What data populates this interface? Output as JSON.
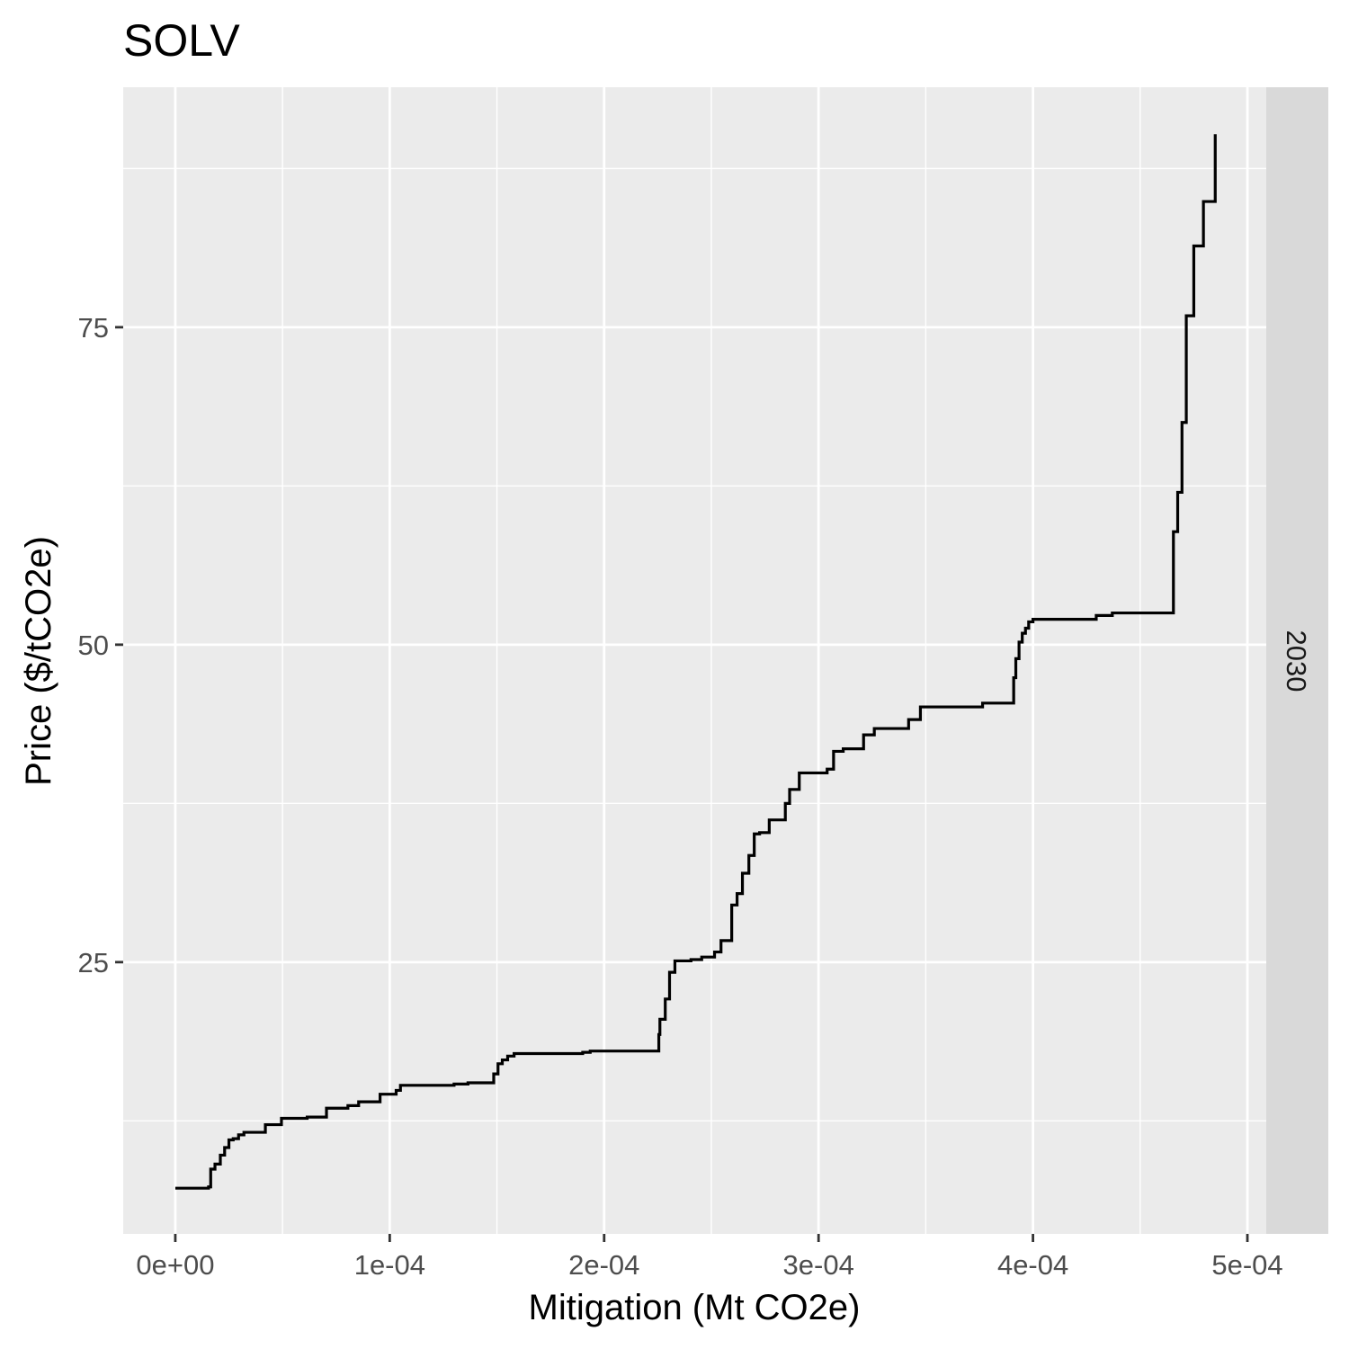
{
  "chart_data": {
    "type": "line",
    "line_style": "step",
    "title": "SOLV",
    "xlabel": "Mitigation (Mt CO2e)",
    "ylabel": "Price ($/tCO2e)",
    "facet_label": "2030",
    "xlim": [
      -2.43e-05,
      0.0005088
    ],
    "ylim": [
      3.6,
      93.9
    ],
    "x_ticks": [
      0,
      0.0001,
      0.0002,
      0.0003,
      0.0004,
      0.0005
    ],
    "x_tick_labels": [
      "0e+00",
      "1e-04",
      "2e-04",
      "3e-04",
      "4e-04",
      "5e-04"
    ],
    "y_ticks": [
      25,
      50,
      75
    ],
    "y_tick_labels": [
      "25",
      "50",
      "75"
    ],
    "grid": true,
    "colors": {
      "panel": "#ebebeb",
      "grid": "#ffffff",
      "strip": "#d9d9d9",
      "line": "#000000"
    },
    "series": [
      {
        "x": [
          0,
          1.55e-05,
          1.65e-05,
          1.85e-05,
          2.1e-05,
          2.3e-05,
          2.5e-05,
          2.7e-05,
          2.95e-05,
          3.2e-05,
          4.2e-05,
          4.95e-05,
          6.15e-05,
          7.05e-05,
          8.05e-05,
          8.55e-05,
          9.55e-05,
          0.000103,
          0.000105,
          0.00013,
          0.0001365,
          0.0001485,
          0.0001505,
          0.0001525,
          0.000155,
          0.000158,
          0.00019,
          0.0001935,
          0.0002245,
          0.0002255,
          0.000226,
          0.0002285,
          0.0002305,
          0.000233,
          0.0002405,
          0.0002455,
          0.0002515,
          0.0002545,
          0.0002595,
          0.000262,
          0.0002645,
          0.0002675,
          0.00027,
          0.0002725,
          0.000277,
          0.0002845,
          0.0002865,
          0.000291,
          0.000304,
          0.000307,
          0.0003115,
          0.000321,
          0.000326,
          0.000342,
          0.0003475,
          0.0003765,
          0.000391,
          0.000392,
          0.0003935,
          0.000395,
          0.0003965,
          0.000398,
          0.0004,
          0.0004295,
          0.000437,
          0.000465,
          0.0004655,
          0.0004675,
          0.0004695,
          0.0004715,
          0.000475,
          0.0004795,
          0.000485,
          0.000485
        ],
        "y": [
          7.2,
          7.3,
          8.7,
          9.1,
          9.8,
          10.4,
          11,
          11.1,
          11.4,
          11.6,
          12.2,
          12.7,
          12.8,
          13.5,
          13.7,
          14,
          14.6,
          14.9,
          15.3,
          15.4,
          15.5,
          16.2,
          17,
          17.3,
          17.6,
          17.8,
          17.9,
          18,
          18,
          19.3,
          20.5,
          22.1,
          24.2,
          25.1,
          25.2,
          25.4,
          25.8,
          26.7,
          29.5,
          30.4,
          32,
          33.4,
          35.1,
          35.2,
          36.2,
          37.5,
          38.6,
          39.9,
          40.2,
          41.6,
          41.8,
          42.9,
          43.4,
          44.1,
          45.1,
          45.4,
          47.4,
          48.9,
          50.2,
          50.9,
          51.3,
          51.8,
          52,
          52.3,
          52.5,
          52.5,
          58.9,
          62,
          67.5,
          75.9,
          81.4,
          84.9,
          89.9,
          90.2
        ]
      }
    ]
  }
}
